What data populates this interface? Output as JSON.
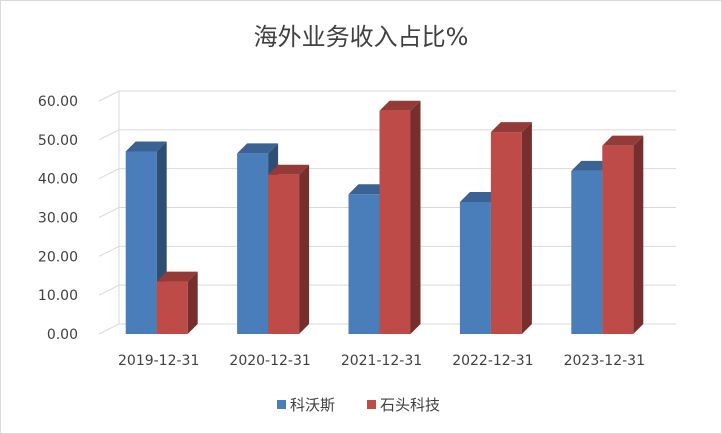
{
  "chart_data": {
    "type": "bar",
    "title": "海外业务收入占比%",
    "categories": [
      "2019-12-31",
      "2020-12-31",
      "2021-12-31",
      "2022-12-31",
      "2023-12-31"
    ],
    "series": [
      {
        "name": "科沃斯",
        "values": [
          47.0,
          46.5,
          36.0,
          34.0,
          42.0
        ],
        "color": "#4a7ebb"
      },
      {
        "name": "石头科技",
        "values": [
          13.5,
          41.0,
          57.5,
          52.0,
          48.5
        ],
        "color": "#be4b48"
      }
    ],
    "yticks": [
      "0.00",
      "10.00",
      "20.00",
      "30.00",
      "40.00",
      "50.00",
      "60.00"
    ],
    "ylim": [
      0,
      60
    ],
    "grid": true,
    "legend_position": "bottom",
    "style": "3d-clustered-column"
  }
}
